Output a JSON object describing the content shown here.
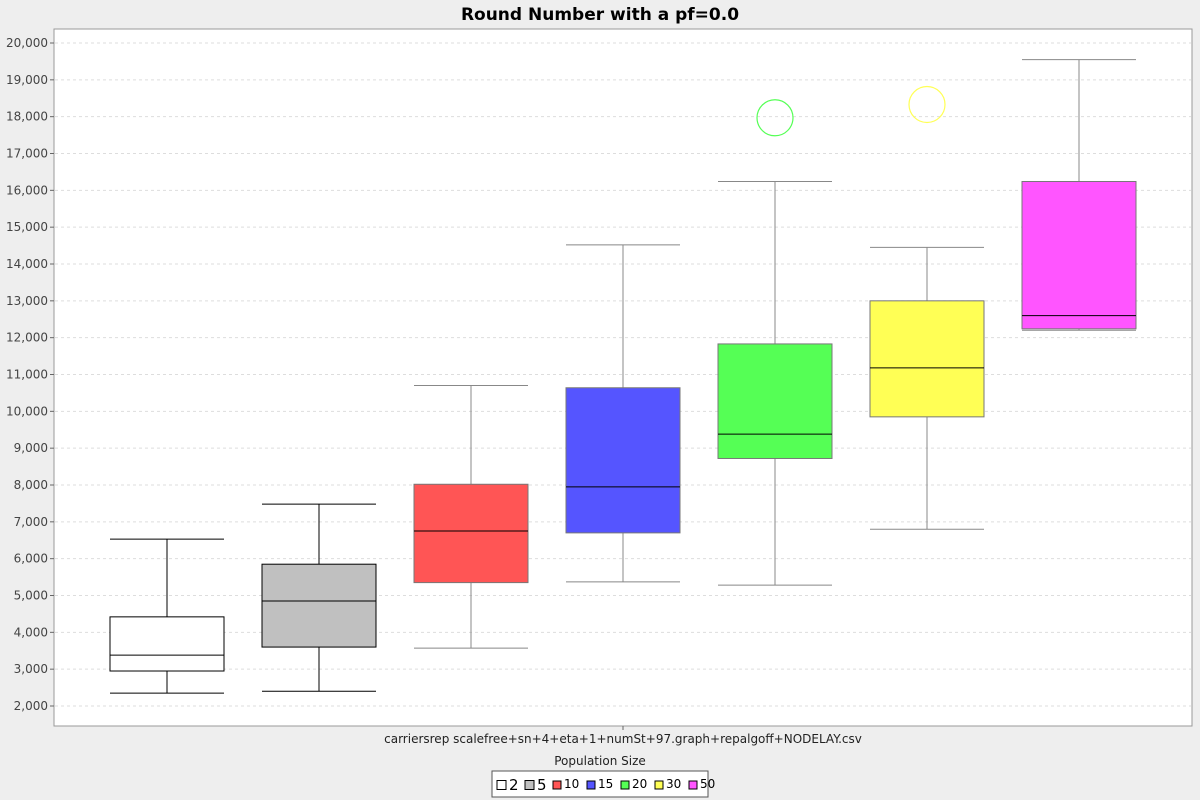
{
  "chart_data": {
    "type": "box",
    "title": "Round Number with a pf=0.0",
    "xlabel": "Population Size",
    "ylabel": "",
    "categories": [
      "carriersrep scalefree+sn+4+eta+1+numSt+97.graph+repalgoff+NODELAY.csv"
    ],
    "ylim": [
      1500,
      20500
    ],
    "yticks": [
      2000,
      3000,
      4000,
      5000,
      6000,
      7000,
      8000,
      9000,
      10000,
      11000,
      12000,
      13000,
      14000,
      15000,
      16000,
      17000,
      18000,
      19000,
      20000
    ],
    "ytick_labels": [
      "2,000",
      "3,000",
      "4,000",
      "5,000",
      "6,000",
      "7,000",
      "8,000",
      "9,000",
      "10,000",
      "11,000",
      "12,000",
      "13,000",
      "14,000",
      "15,000",
      "16,000",
      "17,000",
      "18,000",
      "19,000",
      "20,000"
    ],
    "grid": true,
    "legend_position": "bottom",
    "series": [
      {
        "name": "2",
        "color": "#ffffff",
        "whisker_low": 2350,
        "q1": 2950,
        "median": 3380,
        "q3": 4420,
        "whisker_high": 6530,
        "outliers": []
      },
      {
        "name": "5",
        "color": "#c0c0c0",
        "whisker_low": 2400,
        "q1": 3600,
        "median": 4850,
        "q3": 5850,
        "whisker_high": 7480,
        "outliers": []
      },
      {
        "name": "10",
        "color": "#ff5555",
        "whisker_low": 3570,
        "q1": 5350,
        "median": 6750,
        "q3": 8020,
        "whisker_high": 10700,
        "outliers": []
      },
      {
        "name": "15",
        "color": "#5555ff",
        "whisker_low": 5370,
        "q1": 6700,
        "median": 7950,
        "q3": 10640,
        "whisker_high": 14520,
        "outliers": []
      },
      {
        "name": "20",
        "color": "#55ff55",
        "whisker_low": 5280,
        "q1": 8720,
        "median": 9380,
        "q3": 11830,
        "whisker_high": 16240,
        "outliers": [
          17970
        ]
      },
      {
        "name": "30",
        "color": "#ffff55",
        "whisker_low": 6800,
        "q1": 9850,
        "median": 11180,
        "q3": 13000,
        "whisker_high": 14450,
        "outliers": [
          18330
        ]
      },
      {
        "name": "50",
        "color": "#ff55ff",
        "whisker_low": 12200,
        "q1": 12240,
        "median": 12600,
        "q3": 16240,
        "whisker_high": 19550,
        "outliers": []
      }
    ]
  }
}
